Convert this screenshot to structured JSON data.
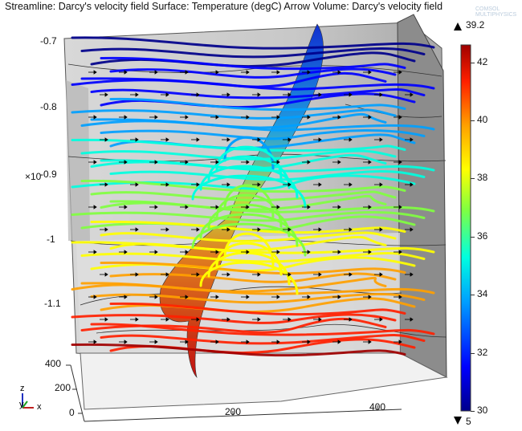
{
  "header": {
    "title": "Streamline: Darcy's velocity field  Surface: Temperature (degC)  Arrow Volume: Darcy's velocity field"
  },
  "axes": {
    "z_ticks": [
      "-0.7",
      "-0.8",
      "-0.9",
      "-1",
      "-1.1"
    ],
    "z_scale": "×10",
    "y_ticks": [
      "400",
      "200",
      "0"
    ],
    "x_ticks": [
      "200",
      "400"
    ]
  },
  "colorbar": {
    "max_label": "39.2",
    "min_label": "5",
    "ticks": [
      "42",
      "40",
      "38",
      "36",
      "34",
      "32",
      "30"
    ],
    "range": [
      30,
      42.6
    ],
    "colors": [
      "#00008b",
      "#0000ff",
      "#00a0ff",
      "#00ffe0",
      "#80ff40",
      "#ffff00",
      "#ffa000",
      "#ff2000",
      "#a00000"
    ]
  },
  "triad": {
    "z": "z",
    "y": "y",
    "x": "x"
  },
  "brand": "COMSOL MULTIPHYSICS"
}
